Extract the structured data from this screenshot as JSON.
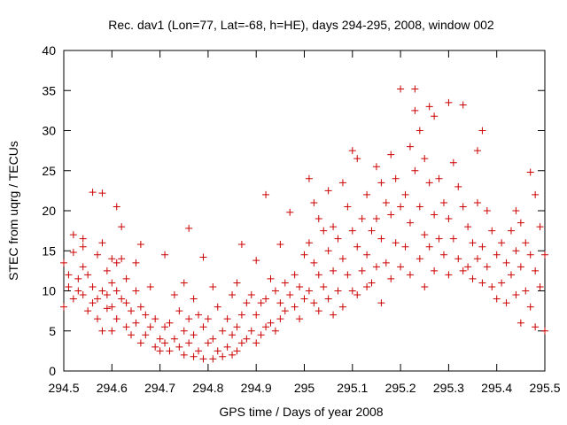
{
  "chart_data": {
    "type": "scatter",
    "title": "Rec. dav1 (Lon=77, Lat=-68, h=HE), days 294-295, 2008, window 002",
    "xlabel": "GPS time / Days of year 2008",
    "ylabel": "STEC from uqrg / TECUs",
    "xlim": [
      294.5,
      295.5
    ],
    "ylim": [
      0,
      40
    ],
    "xticks": [
      294.5,
      294.6,
      294.7,
      294.8,
      294.9,
      295,
      295.1,
      295.2,
      295.3,
      295.4,
      295.5
    ],
    "xtick_labels": [
      "294.5",
      "294.6",
      "294.7",
      "294.8",
      "294.9",
      "295",
      "295.1",
      "295.2",
      "295.3",
      "295.4",
      "295.5"
    ],
    "yticks": [
      0,
      5,
      10,
      15,
      20,
      25,
      30,
      35,
      40
    ],
    "ytick_labels": [
      "0",
      "5",
      "10",
      "15",
      "20",
      "25",
      "30",
      "35",
      "40"
    ],
    "grid": false,
    "legend": "none",
    "marker": "plus",
    "color": "#cc0000",
    "points": [
      [
        294.5,
        13.5
      ],
      [
        294.5,
        8.0
      ],
      [
        294.51,
        10.5
      ],
      [
        294.51,
        12.0
      ],
      [
        294.52,
        17.0
      ],
      [
        294.52,
        14.8
      ],
      [
        294.52,
        9.0
      ],
      [
        294.53,
        11.5
      ],
      [
        294.53,
        10.0
      ],
      [
        294.54,
        16.5
      ],
      [
        294.54,
        15.5
      ],
      [
        294.54,
        13.0
      ],
      [
        294.54,
        9.5
      ],
      [
        294.55,
        12.0
      ],
      [
        294.55,
        7.5
      ],
      [
        294.56,
        22.3
      ],
      [
        294.56,
        10.5
      ],
      [
        294.56,
        8.5
      ],
      [
        294.57,
        14.5
      ],
      [
        294.57,
        9.0
      ],
      [
        294.57,
        6.5
      ],
      [
        294.58,
        22.2
      ],
      [
        294.58,
        16.0
      ],
      [
        294.58,
        10.0
      ],
      [
        294.58,
        5.0
      ],
      [
        294.59,
        12.5
      ],
      [
        294.59,
        9.5
      ],
      [
        294.59,
        7.8
      ],
      [
        294.6,
        14.0
      ],
      [
        294.6,
        11.0
      ],
      [
        294.6,
        8.0
      ],
      [
        294.6,
        5.0
      ],
      [
        294.61,
        20.5
      ],
      [
        294.61,
        13.5
      ],
      [
        294.61,
        10.0
      ],
      [
        294.61,
        6.5
      ],
      [
        294.62,
        18.0
      ],
      [
        294.62,
        14.0
      ],
      [
        294.62,
        9.0
      ],
      [
        294.63,
        11.5
      ],
      [
        294.63,
        8.5
      ],
      [
        294.63,
        5.5
      ],
      [
        294.64,
        7.5
      ],
      [
        294.64,
        4.5
      ],
      [
        294.65,
        13.5
      ],
      [
        294.65,
        10.0
      ],
      [
        294.65,
        6.0
      ],
      [
        294.66,
        15.8
      ],
      [
        294.66,
        8.0
      ],
      [
        294.66,
        3.5
      ],
      [
        294.67,
        7.0
      ],
      [
        294.67,
        4.5
      ],
      [
        294.68,
        10.5
      ],
      [
        294.68,
        5.5
      ],
      [
        294.69,
        6.5
      ],
      [
        294.69,
        3.0
      ],
      [
        294.7,
        4.0
      ],
      [
        294.7,
        2.5
      ],
      [
        294.71,
        14.5
      ],
      [
        294.71,
        5.5
      ],
      [
        294.71,
        3.5
      ],
      [
        294.72,
        6.0
      ],
      [
        294.72,
        2.5
      ],
      [
        294.73,
        9.5
      ],
      [
        294.73,
        4.0
      ],
      [
        294.74,
        7.5
      ],
      [
        294.74,
        3.0
      ],
      [
        294.75,
        11.0
      ],
      [
        294.75,
        5.0
      ],
      [
        294.75,
        2.0
      ],
      [
        294.76,
        17.8
      ],
      [
        294.76,
        6.5
      ],
      [
        294.76,
        3.5
      ],
      [
        294.77,
        9.0
      ],
      [
        294.77,
        4.5
      ],
      [
        294.77,
        1.8
      ],
      [
        294.78,
        7.0
      ],
      [
        294.78,
        2.5
      ],
      [
        294.79,
        14.2
      ],
      [
        294.79,
        5.5
      ],
      [
        294.79,
        1.5
      ],
      [
        294.8,
        3.5
      ],
      [
        294.8,
        6.5
      ],
      [
        294.81,
        10.5
      ],
      [
        294.81,
        4.0
      ],
      [
        294.81,
        1.5
      ],
      [
        294.82,
        8.0
      ],
      [
        294.82,
        2.5
      ],
      [
        294.83,
        5.0
      ],
      [
        294.83,
        1.8
      ],
      [
        294.84,
        6.5
      ],
      [
        294.84,
        3.0
      ],
      [
        294.85,
        9.5
      ],
      [
        294.85,
        4.5
      ],
      [
        294.85,
        2.0
      ],
      [
        294.86,
        11.0
      ],
      [
        294.86,
        5.5
      ],
      [
        294.86,
        2.5
      ],
      [
        294.87,
        15.8
      ],
      [
        294.87,
        7.0
      ],
      [
        294.87,
        3.5
      ],
      [
        294.88,
        8.5
      ],
      [
        294.88,
        4.0
      ],
      [
        294.89,
        9.5
      ],
      [
        294.89,
        5.0
      ],
      [
        294.9,
        13.8
      ],
      [
        294.9,
        7.0
      ],
      [
        294.9,
        3.5
      ],
      [
        294.91,
        8.5
      ],
      [
        294.91,
        4.5
      ],
      [
        294.92,
        22.0
      ],
      [
        294.92,
        9.0
      ],
      [
        294.92,
        5.5
      ],
      [
        294.93,
        11.5
      ],
      [
        294.93,
        6.0
      ],
      [
        294.94,
        10.0
      ],
      [
        294.94,
        5.0
      ],
      [
        294.95,
        15.8
      ],
      [
        294.95,
        8.5
      ],
      [
        294.95,
        6.5
      ],
      [
        294.96,
        11.0
      ],
      [
        294.96,
        7.5
      ],
      [
        294.97,
        19.8
      ],
      [
        294.97,
        9.5
      ],
      [
        294.98,
        12.0
      ],
      [
        294.98,
        8.0
      ],
      [
        294.99,
        10.5
      ],
      [
        294.99,
        6.5
      ],
      [
        295.0,
        14.5
      ],
      [
        295.0,
        9.0
      ],
      [
        295.01,
        24.0
      ],
      [
        295.01,
        16.0
      ],
      [
        295.01,
        10.0
      ],
      [
        295.02,
        21.0
      ],
      [
        295.02,
        13.5
      ],
      [
        295.02,
        8.5
      ],
      [
        295.03,
        19.0
      ],
      [
        295.03,
        12.0
      ],
      [
        295.03,
        7.5
      ],
      [
        295.04,
        17.5
      ],
      [
        295.04,
        10.5
      ],
      [
        295.05,
        22.5
      ],
      [
        295.05,
        15.0
      ],
      [
        295.05,
        9.0
      ],
      [
        295.06,
        18.0
      ],
      [
        295.06,
        12.5
      ],
      [
        295.06,
        7.0
      ],
      [
        295.07,
        16.5
      ],
      [
        295.07,
        10.0
      ],
      [
        295.08,
        23.5
      ],
      [
        295.08,
        14.0
      ],
      [
        295.08,
        8.0
      ],
      [
        295.09,
        20.5
      ],
      [
        295.09,
        12.0
      ],
      [
        295.1,
        27.5
      ],
      [
        295.1,
        17.5
      ],
      [
        295.1,
        10.0
      ],
      [
        295.11,
        26.5
      ],
      [
        295.11,
        15.5
      ],
      [
        295.11,
        9.5
      ],
      [
        295.12,
        19.0
      ],
      [
        295.12,
        12.5
      ],
      [
        295.13,
        22.0
      ],
      [
        295.13,
        14.5
      ],
      [
        295.13,
        10.5
      ],
      [
        295.14,
        17.5
      ],
      [
        295.14,
        11.0
      ],
      [
        295.15,
        25.5
      ],
      [
        295.15,
        19.0
      ],
      [
        295.15,
        13.0
      ],
      [
        295.16,
        23.5
      ],
      [
        295.16,
        16.5
      ],
      [
        295.16,
        8.5
      ],
      [
        295.17,
        21.0
      ],
      [
        295.17,
        13.5
      ],
      [
        295.18,
        27.0
      ],
      [
        295.18,
        19.5
      ],
      [
        295.18,
        11.5
      ],
      [
        295.19,
        24.0
      ],
      [
        295.19,
        16.0
      ],
      [
        295.2,
        35.2
      ],
      [
        295.2,
        20.5
      ],
      [
        295.2,
        13.0
      ],
      [
        295.21,
        22.0
      ],
      [
        295.21,
        15.5
      ],
      [
        295.22,
        28.0
      ],
      [
        295.22,
        18.5
      ],
      [
        295.22,
        12.0
      ],
      [
        295.23,
        35.2
      ],
      [
        295.23,
        32.5
      ],
      [
        295.23,
        25.0
      ],
      [
        295.24,
        30.0
      ],
      [
        295.24,
        20.5
      ],
      [
        295.24,
        14.0
      ],
      [
        295.25,
        26.5
      ],
      [
        295.25,
        17.0
      ],
      [
        295.25,
        10.5
      ],
      [
        295.26,
        33.0
      ],
      [
        295.26,
        23.5
      ],
      [
        295.26,
        15.5
      ],
      [
        295.27,
        31.8
      ],
      [
        295.27,
        19.5
      ],
      [
        295.27,
        12.5
      ],
      [
        295.28,
        24.0
      ],
      [
        295.28,
        16.5
      ],
      [
        295.29,
        21.0
      ],
      [
        295.29,
        14.5
      ],
      [
        295.3,
        33.5
      ],
      [
        295.3,
        19.0
      ],
      [
        295.3,
        12.0
      ],
      [
        295.31,
        26.0
      ],
      [
        295.31,
        16.5
      ],
      [
        295.32,
        23.0
      ],
      [
        295.32,
        14.0
      ],
      [
        295.33,
        33.2
      ],
      [
        295.33,
        20.5
      ],
      [
        295.33,
        12.5
      ],
      [
        295.34,
        18.0
      ],
      [
        295.34,
        13.0
      ],
      [
        295.35,
        16.0
      ],
      [
        295.35,
        11.5
      ],
      [
        295.36,
        27.5
      ],
      [
        295.36,
        21.0
      ],
      [
        295.36,
        14.0
      ],
      [
        295.37,
        30.0
      ],
      [
        295.37,
        15.5
      ],
      [
        295.37,
        11.0
      ],
      [
        295.38,
        20.0
      ],
      [
        295.38,
        13.0
      ],
      [
        295.39,
        17.5
      ],
      [
        295.39,
        10.5
      ],
      [
        295.4,
        14.5
      ],
      [
        295.4,
        9.0
      ],
      [
        295.41,
        16.0
      ],
      [
        295.41,
        11.0
      ],
      [
        295.42,
        13.5
      ],
      [
        295.42,
        8.5
      ],
      [
        295.43,
        17.5
      ],
      [
        295.43,
        12.0
      ],
      [
        295.44,
        20.0
      ],
      [
        295.44,
        15.0
      ],
      [
        295.44,
        9.5
      ],
      [
        295.45,
        18.5
      ],
      [
        295.45,
        13.0
      ],
      [
        295.45,
        6.0
      ],
      [
        295.46,
        16.0
      ],
      [
        295.46,
        10.0
      ],
      [
        295.47,
        24.8
      ],
      [
        295.47,
        14.5
      ],
      [
        295.47,
        8.0
      ],
      [
        295.48,
        22.0
      ],
      [
        295.48,
        12.5
      ],
      [
        295.48,
        5.5
      ],
      [
        295.49,
        18.0
      ],
      [
        295.49,
        10.5
      ],
      [
        295.5,
        14.5
      ],
      [
        295.5,
        5.0
      ]
    ]
  }
}
